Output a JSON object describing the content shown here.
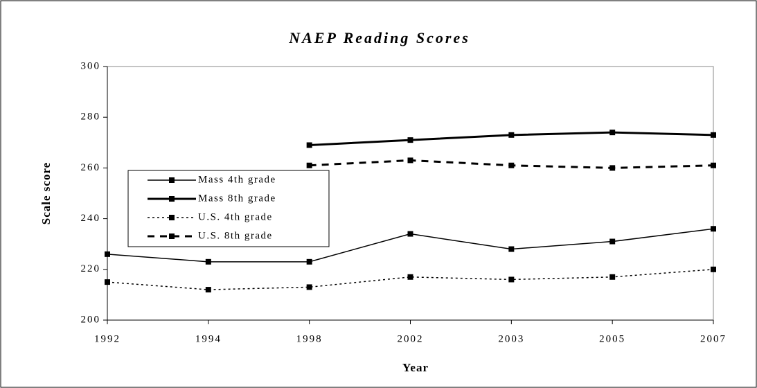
{
  "chart_data": {
    "type": "line",
    "title": "NAEP Reading Scores",
    "x_label": "Year",
    "y_label": "Scale score",
    "categories": [
      "1992",
      "1994",
      "1998",
      "2002",
      "2003",
      "2005",
      "2007"
    ],
    "series": [
      {
        "name": "Mass 4th grade",
        "color": "#000000",
        "dash": "solid",
        "width": 1.5,
        "values": [
          226,
          223,
          223,
          234,
          228,
          231,
          236
        ]
      },
      {
        "name": "Mass 8th grade",
        "color": "#000000",
        "dash": "solid",
        "width": 3,
        "values": [
          null,
          null,
          269,
          271,
          273,
          274,
          273
        ]
      },
      {
        "name": "U.S. 4th grade",
        "color": "#000000",
        "dash": "dotted",
        "width": 1.5,
        "values": [
          215,
          212,
          213,
          217,
          216,
          217,
          220
        ]
      },
      {
        "name": "U.S. 8th grade",
        "color": "#000000",
        "dash": "dashed",
        "width": 3,
        "values": [
          null,
          null,
          261,
          263,
          261,
          260,
          261
        ]
      }
    ],
    "ylim": [
      200,
      300
    ],
    "yticks": [
      200,
      220,
      240,
      260,
      280,
      300
    ],
    "grid": false,
    "legend": "left"
  }
}
